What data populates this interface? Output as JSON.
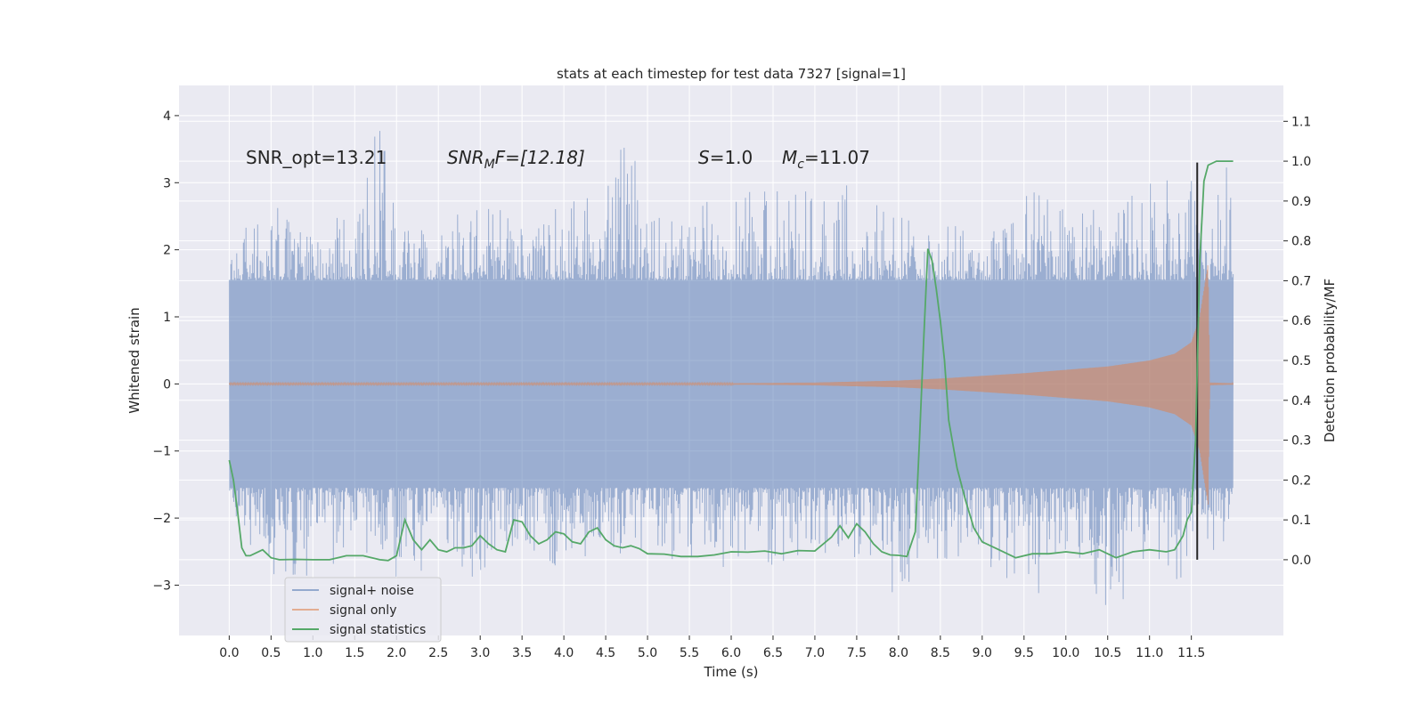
{
  "chart_data": {
    "type": "line",
    "title": "stats at each timestep for test data 7327 [signal=1]",
    "xlabel": "Time (s)",
    "ylabel": "Whitened strain",
    "y2label": "Detection probability/MF",
    "xlim": [
      -0.6,
      12.6
    ],
    "ylim": [
      -3.75,
      4.45
    ],
    "y2lim": [
      -0.19,
      1.19
    ],
    "x_ticks": [
      "0.0",
      "0.5",
      "1.0",
      "1.5",
      "2.0",
      "2.5",
      "3.0",
      "3.5",
      "4.0",
      "4.5",
      "5.0",
      "5.5",
      "6.0",
      "6.5",
      "7.0",
      "7.5",
      "8.0",
      "8.5",
      "9.0",
      "9.5",
      "10.0",
      "10.5",
      "11.0",
      "11.5"
    ],
    "y_ticks": [
      "−3",
      "−2",
      "−1",
      "0",
      "1",
      "2",
      "3",
      "4"
    ],
    "y2_ticks": [
      "0.0",
      "0.1",
      "0.2",
      "0.3",
      "0.4",
      "0.5",
      "0.6",
      "0.7",
      "0.8",
      "0.9",
      "1.0",
      "1.1"
    ],
    "grid": true,
    "legend_position": "bottom-left",
    "annotations": {
      "snr_opt": "SNR_opt=13.21",
      "snr_mf_main": "SNR",
      "snr_mf_sub": "M",
      "snr_mf_tail": "F=[12.18]",
      "s_main": "S",
      "s_value": "=1.0",
      "mc_main": "M",
      "mc_sub": "c",
      "mc_value": "=11.07"
    },
    "vertical_marker_x": 11.57,
    "series": [
      {
        "name": "signal+ noise",
        "color": "#4c72b0",
        "axis": "left",
        "x_range": [
          0.0,
          12.0
        ],
        "envelope": {
          "x": [
            0,
            0.5,
            1.0,
            1.5,
            1.8,
            2.0,
            2.5,
            3.0,
            3.5,
            4.0,
            4.5,
            4.75,
            5.0,
            5.5,
            6.0,
            6.5,
            7.0,
            7.5,
            8.0,
            8.5,
            9.0,
            9.5,
            10.0,
            10.5,
            11.0,
            11.5,
            12.0
          ],
          "upper": [
            2.1,
            2.8,
            2.2,
            2.7,
            4.1,
            2.5,
            2.4,
            2.8,
            2.4,
            2.7,
            2.9,
            3.9,
            2.5,
            2.6,
            2.9,
            3.0,
            3.1,
            3.0,
            2.5,
            2.3,
            2.6,
            3.1,
            2.6,
            2.6,
            3.0,
            3.2,
            3.35
          ],
          "lower": [
            -1.8,
            -3.0,
            -2.9,
            -2.6,
            -2.5,
            -2.9,
            -2.8,
            -2.9,
            -2.7,
            -2.8,
            -2.4,
            -2.6,
            -2.7,
            -2.6,
            -2.8,
            -2.7,
            -2.5,
            -2.6,
            -3.2,
            -2.6,
            -2.8,
            -3.3,
            -2.8,
            -3.4,
            -2.9,
            -3.0,
            -2.2
          ]
        }
      },
      {
        "name": "signal only",
        "color": "#dd8452",
        "axis": "left",
        "x_range": [
          0.0,
          12.0
        ],
        "envelope": {
          "x": [
            0,
            6.0,
            7.0,
            8.0,
            8.5,
            9.0,
            9.5,
            10.0,
            10.5,
            11.0,
            11.3,
            11.5,
            11.6,
            11.7,
            11.72,
            12.0
          ],
          "upper": [
            0.01,
            0.01,
            0.02,
            0.05,
            0.08,
            0.12,
            0.16,
            0.21,
            0.26,
            0.35,
            0.45,
            0.62,
            1.0,
            1.8,
            0.02,
            0.01
          ],
          "lower": [
            -0.01,
            -0.01,
            -0.02,
            -0.05,
            -0.08,
            -0.12,
            -0.16,
            -0.21,
            -0.26,
            -0.35,
            -0.45,
            -0.62,
            -1.0,
            -1.8,
            -0.02,
            -0.01
          ]
        }
      },
      {
        "name": "signal statistics",
        "color": "#55a868",
        "axis": "right",
        "x": [
          0.0,
          0.05,
          0.1,
          0.15,
          0.2,
          0.25,
          0.3,
          0.4,
          0.5,
          0.6,
          0.8,
          1.0,
          1.2,
          1.4,
          1.6,
          1.8,
          1.9,
          2.0,
          2.1,
          2.2,
          2.3,
          2.4,
          2.5,
          2.6,
          2.7,
          2.8,
          2.9,
          3.0,
          3.1,
          3.2,
          3.3,
          3.4,
          3.5,
          3.6,
          3.7,
          3.8,
          3.9,
          4.0,
          4.1,
          4.2,
          4.3,
          4.4,
          4.5,
          4.6,
          4.7,
          4.8,
          4.9,
          5.0,
          5.2,
          5.4,
          5.6,
          5.8,
          6.0,
          6.2,
          6.4,
          6.6,
          6.8,
          7.0,
          7.2,
          7.3,
          7.4,
          7.5,
          7.6,
          7.7,
          7.8,
          7.9,
          8.0,
          8.1,
          8.2,
          8.25,
          8.3,
          8.35,
          8.4,
          8.45,
          8.5,
          8.55,
          8.6,
          8.7,
          8.8,
          8.9,
          9.0,
          9.2,
          9.4,
          9.6,
          9.8,
          10.0,
          10.2,
          10.4,
          10.6,
          10.8,
          11.0,
          11.2,
          11.3,
          11.4,
          11.45,
          11.5,
          11.55,
          11.6,
          11.65,
          11.7,
          11.8,
          11.9,
          12.0
        ],
        "y": [
          0.25,
          0.2,
          0.12,
          0.03,
          0.01,
          0.01,
          0.015,
          0.025,
          0.005,
          0.0,
          0.001,
          0.0,
          0.0,
          0.01,
          0.01,
          0.0,
          -0.002,
          0.01,
          0.1,
          0.05,
          0.025,
          0.05,
          0.025,
          0.02,
          0.03,
          0.03,
          0.035,
          0.06,
          0.04,
          0.025,
          0.02,
          0.1,
          0.095,
          0.06,
          0.04,
          0.05,
          0.07,
          0.065,
          0.045,
          0.04,
          0.07,
          0.08,
          0.05,
          0.035,
          0.03,
          0.035,
          0.028,
          0.015,
          0.014,
          0.008,
          0.008,
          0.012,
          0.02,
          0.019,
          0.022,
          0.015,
          0.023,
          0.022,
          0.057,
          0.085,
          0.055,
          0.09,
          0.07,
          0.04,
          0.02,
          0.012,
          0.011,
          0.008,
          0.07,
          0.3,
          0.55,
          0.78,
          0.75,
          0.68,
          0.6,
          0.5,
          0.35,
          0.23,
          0.15,
          0.08,
          0.045,
          0.025,
          0.005,
          0.015,
          0.015,
          0.02,
          0.015,
          0.025,
          0.005,
          0.02,
          0.025,
          0.02,
          0.025,
          0.06,
          0.1,
          0.12,
          0.3,
          0.75,
          0.95,
          0.99,
          1.0,
          1.0,
          1.0
        ]
      }
    ]
  }
}
